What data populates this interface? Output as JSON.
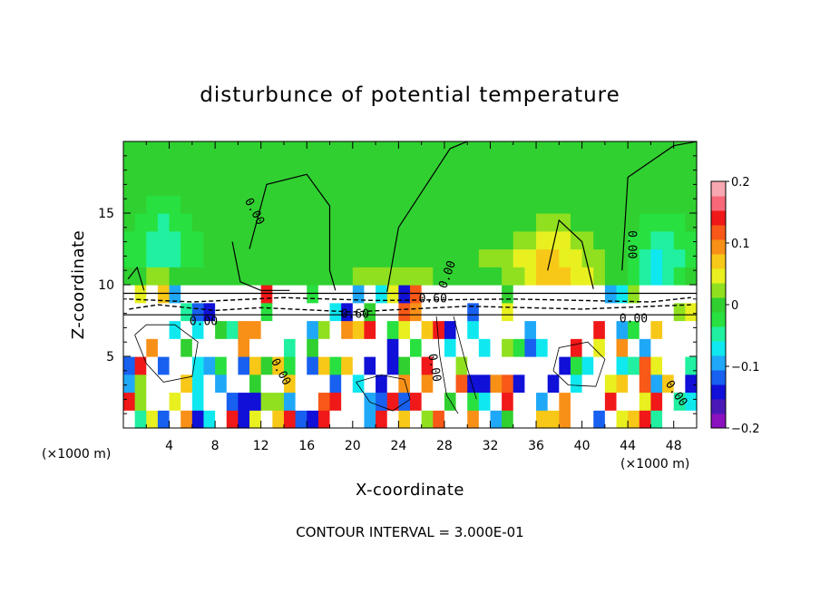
{
  "chart_data": {
    "type": "heatmap",
    "title": "disturbunce of potential temperature",
    "xlabel": "X-coordinate",
    "ylabel": "Z-coordinate",
    "x_unit": "(×1000 m)",
    "y_unit": "(×1000 m)",
    "xlim": [
      0,
      50
    ],
    "ylim": [
      0,
      20
    ],
    "x_ticks": [
      "4",
      "8",
      "12",
      "16",
      "20",
      "24",
      "28",
      "32",
      "36",
      "40",
      "44",
      "48"
    ],
    "y_ticks": [
      "5",
      "10",
      "15"
    ],
    "colorbar": {
      "range": [
        -0.2,
        0.2
      ],
      "tick_labels": [
        "0.2",
        "0.1",
        "0",
        "−0.1",
        "−0.2"
      ],
      "colors": [
        "#8b10c0",
        "#4b18b8",
        "#1010d8",
        "#1860f0",
        "#20a8f8",
        "#10e8f0",
        "#20f0a0",
        "#28e040",
        "#30d030",
        "#90e020",
        "#e8f020",
        "#f8c818",
        "#f89018",
        "#f85818",
        "#f01818",
        "#f86878",
        "#f8a8b0"
      ]
    },
    "contour_labels": [
      "0.00",
      "0.00",
      "0.00",
      "0.00",
      "0.60",
      "0.60",
      "0.00",
      "0.00",
      "0.00",
      "0.00"
    ],
    "cell_values": [
      [
        0.22,
        -0.05,
        0.04,
        -0.12,
        0.22,
        0.1,
        -0.13,
        -0.08,
        0.22,
        0.14,
        -0.15,
        0.05,
        0.22,
        0.08,
        0.15,
        -0.12,
        -0.14,
        0.14,
        0.22,
        0.22,
        0.22,
        -0.1,
        0.13,
        0.22,
        0.06,
        0.22,
        0.03,
        0.12,
        0.22,
        0.22,
        0.1,
        0.22,
        -0.1,
        0.01,
        0.22,
        0.22,
        0.08,
        0.07,
        0.1,
        0.22,
        0.22,
        -0.12,
        0.22,
        0.04,
        0.06,
        0.14,
        -0.05,
        0.22,
        0.22,
        0.22
      ],
      [
        0.13,
        0.02,
        0.22,
        0.22,
        0.05,
        0.22,
        -0.08,
        0.22,
        0.22,
        -0.11,
        -0.13,
        -0.13,
        0.03,
        0.02,
        -0.1,
        0.22,
        0.22,
        0.12,
        0.13,
        0.22,
        0.22,
        -0.1,
        -0.11,
        0.14,
        -0.11,
        0.15,
        0.22,
        0.22,
        0.01,
        0.22,
        -0.02,
        -0.08,
        0.22,
        0.14,
        0.22,
        0.22,
        -0.1,
        0.22,
        0.1,
        0.22,
        0.22,
        0.22,
        0.14,
        0.22,
        0.22,
        0.04,
        0.14,
        0.22,
        -0.04,
        -0.06
      ],
      [
        -0.1,
        0.03,
        0.22,
        0.22,
        0.22,
        0.07,
        -0.06,
        0.22,
        -0.1,
        0.22,
        0.22,
        -0.01,
        0.22,
        0.22,
        0.08,
        0.22,
        0.22,
        0.22,
        -0.11,
        0.22,
        -0.07,
        0.22,
        -0.15,
        0.22,
        0.1,
        0.22,
        0.1,
        0.22,
        0.22,
        0.11,
        -0.15,
        -0.14,
        0.09,
        0.12,
        -0.14,
        0.22,
        0.22,
        -0.13,
        0.22,
        -0.06,
        0.22,
        0.22,
        0.05,
        0.08,
        0.22,
        0.11,
        -0.1,
        0.06,
        0.22,
        -0.14
      ],
      [
        -0.11,
        0.13,
        0.22,
        -0.11,
        0.22,
        0.22,
        -0.07,
        -0.1,
        -0.03,
        0.22,
        -0.11,
        0.06,
        0.01,
        0.07,
        -0.02,
        0.22,
        -0.11,
        0.07,
        -0.03,
        0.08,
        0.22,
        -0.14,
        0.22,
        -0.13,
        -0.01,
        0.22,
        0.13,
        0.22,
        0.22,
        0.02,
        0.22,
        0.22,
        0.22,
        0.22,
        0.22,
        0.22,
        0.22,
        0.22,
        -0.15,
        -0.03,
        -0.08,
        0.22,
        0.22,
        -0.06,
        -0.05,
        0.12,
        0.04,
        0.22,
        0.22,
        -0.05
      ],
      [
        0.22,
        0.22,
        0.1,
        0.22,
        0.22,
        -0.01,
        0.22,
        0.22,
        0.22,
        0.22,
        0.09,
        0.22,
        0.22,
        0.22,
        -0.05,
        0.22,
        -0.01,
        0.22,
        0.22,
        0.22,
        0.22,
        0.22,
        0.22,
        -0.15,
        0.22,
        -0.02,
        0.22,
        0.22,
        -0.08,
        0.22,
        0.22,
        -0.07,
        0.22,
        0.02,
        -0.02,
        -0.12,
        -0.07,
        0.22,
        0.22,
        0.14,
        0.22,
        0.04,
        0.22,
        0.1,
        0.22,
        -0.1,
        0.22,
        0.22,
        0.22,
        0.22
      ],
      [
        0.22,
        0.22,
        0.22,
        0.22,
        -0.06,
        0.22,
        -0.06,
        0.22,
        -0.01,
        -0.04,
        0.1,
        0.1,
        0.22,
        0.22,
        0.22,
        0.22,
        -0.1,
        0.02,
        0.22,
        0.09,
        0.08,
        0.15,
        0.22,
        -0.02,
        0.04,
        0.22,
        0.08,
        0.13,
        -0.13,
        0.22,
        -0.08,
        0.22,
        0.22,
        0.22,
        0.22,
        -0.09,
        0.22,
        0.22,
        0.22,
        0.22,
        0.22,
        0.15,
        0.22,
        -0.1,
        -0.03,
        0.22,
        0.06,
        0.22,
        0.22,
        0.22
      ],
      [
        0.22,
        0.22,
        0.22,
        0.22,
        0.22,
        -0.05,
        -0.12,
        -0.14,
        0.22,
        0.22,
        0.22,
        0.22,
        -0.03,
        0.22,
        0.22,
        0.22,
        0.22,
        0.22,
        -0.08,
        -0.14,
        0.22,
        0.01,
        0.22,
        0.22,
        0.11,
        0.1,
        0.22,
        0.22,
        0.22,
        0.22,
        -0.11,
        0.22,
        0.22,
        0.04,
        0.22,
        0.22,
        0.22,
        0.22,
        0.22,
        0.22,
        0.22,
        0.22,
        0.22,
        0.22,
        0.22,
        0.22,
        0.22,
        0.22,
        0.03,
        0.04
      ],
      [
        0.22,
        0.04,
        0.22,
        0.06,
        -0.09,
        0.22,
        0.22,
        0.22,
        0.22,
        0.22,
        0.22,
        0.22,
        0.13,
        0.22,
        0.22,
        0.22,
        -0.03,
        0.22,
        0.22,
        0.22,
        -0.09,
        0.22,
        -0.08,
        0.05,
        -0.14,
        0.11,
        0.22,
        0.22,
        0.22,
        0.22,
        0.22,
        0.22,
        0.22,
        -0.01,
        0.22,
        0.22,
        0.22,
        0.22,
        0.22,
        0.22,
        0.22,
        0.22,
        -0.1,
        -0.07,
        0.02,
        0.22,
        0.22,
        0.22,
        0.22,
        0.22
      ],
      [
        0.0,
        0.01,
        0.02,
        0.02,
        0.01,
        0.01,
        0.0,
        0.0,
        -0.01,
        -0.01,
        -0.01,
        -0.01,
        0.0,
        0.01,
        0.01,
        0.01,
        0.0,
        0.0,
        0.0,
        0.01,
        0.02,
        0.02,
        0.03,
        0.03,
        0.03,
        0.03,
        0.02,
        0.01,
        0.0,
        -0.01,
        -0.01,
        0.0,
        0.01,
        0.02,
        0.03,
        0.05,
        0.06,
        0.07,
        0.06,
        0.05,
        0.04,
        0.02,
        0.01,
        -0.01,
        -0.03,
        -0.05,
        -0.06,
        -0.05,
        -0.02,
        0.0
      ],
      [
        -0.02,
        -0.03,
        -0.04,
        -0.04,
        -0.04,
        -0.03,
        -0.02,
        -0.01,
        0.0,
        0.01,
        0.01,
        0.0,
        0.0,
        0.0,
        0.0,
        0.01,
        0.01,
        0.01,
        0.01,
        0.01,
        0.01,
        0.01,
        0.01,
        0.01,
        0.01,
        0.01,
        0.01,
        0.0,
        0.0,
        0.0,
        0.01,
        0.02,
        0.02,
        0.03,
        0.04,
        0.05,
        0.06,
        0.06,
        0.05,
        0.04,
        0.03,
        0.02,
        0.01,
        -0.01,
        -0.03,
        -0.05,
        -0.06,
        -0.05,
        -0.04,
        -0.02
      ],
      [
        -0.02,
        -0.03,
        -0.04,
        -0.05,
        -0.04,
        -0.03,
        -0.02,
        -0.01,
        -0.01,
        0.0,
        0.0,
        0.01,
        0.01,
        0.01,
        0.01,
        0.01,
        0.01,
        0.01,
        0.01,
        0.01,
        0.01,
        0.01,
        0.01,
        0.01,
        0.01,
        0.01,
        0.01,
        0.01,
        0.01,
        0.0,
        0.0,
        0.0,
        0.01,
        0.01,
        0.02,
        0.03,
        0.04,
        0.04,
        0.04,
        0.03,
        0.02,
        0.01,
        0.0,
        -0.01,
        -0.02,
        -0.03,
        -0.04,
        -0.04,
        -0.03,
        -0.02
      ],
      [
        -0.01,
        -0.02,
        -0.03,
        -0.04,
        -0.03,
        -0.02,
        -0.01,
        0.0,
        0.0,
        0.01,
        0.01,
        0.01,
        0.01,
        0.01,
        0.01,
        0.01,
        0.01,
        0.01,
        0.01,
        0.01,
        0.01,
        0.01,
        0.01,
        0.01,
        0.01,
        0.01,
        0.01,
        0.01,
        0.01,
        0.01,
        0.01,
        0.0,
        0.0,
        0.0,
        0.01,
        0.01,
        0.02,
        0.02,
        0.02,
        0.01,
        0.01,
        0.0,
        0.0,
        -0.01,
        -0.01,
        -0.02,
        -0.03,
        -0.03,
        -0.02,
        -0.01
      ],
      [
        0.0,
        -0.01,
        -0.02,
        -0.02,
        -0.02,
        -0.01,
        0.0,
        0.0,
        0.01,
        0.01,
        0.01,
        0.01,
        0.01,
        0.01,
        0.01,
        0.01,
        0.01,
        0.01,
        0.01,
        0.01,
        0.01,
        0.01,
        0.01,
        0.01,
        0.01,
        0.01,
        0.01,
        0.01,
        0.01,
        0.01,
        0.01,
        0.01,
        0.01,
        0.0,
        0.0,
        0.0,
        0.0,
        0.01,
        0.01,
        0.0,
        0.0,
        0.0,
        0.0,
        0.0,
        0.0,
        -0.01,
        -0.01,
        -0.01,
        -0.01,
        0.0
      ],
      [
        0.0,
        0.0,
        -0.01,
        -0.01,
        -0.01,
        0.0,
        0.0,
        0.0,
        0.01,
        0.01,
        0.01,
        0.01,
        0.01,
        0.01,
        0.01,
        0.01,
        0.01,
        0.01,
        0.01,
        0.01,
        0.01,
        0.01,
        0.01,
        0.01,
        0.01,
        0.01,
        0.01,
        0.01,
        0.01,
        0.01,
        0.01,
        0.01,
        0.01,
        0.01,
        0.01,
        0.0,
        0.0,
        0.0,
        0.0,
        0.0,
        0.0,
        0.0,
        0.0,
        0.0,
        0.0,
        0.0,
        0.0,
        0.0,
        0.0,
        0.0
      ],
      [
        0.01,
        0.01,
        0.01,
        0.01,
        0.01,
        0.01,
        0.01,
        0.01,
        0.01,
        0.01,
        0.01,
        0.01,
        0.01,
        0.01,
        0.01,
        0.01,
        0.01,
        0.01,
        0.01,
        0.01,
        0.01,
        0.01,
        0.01,
        0.01,
        0.01,
        0.01,
        0.01,
        0.01,
        0.01,
        0.01,
        0.01,
        0.01,
        0.01,
        0.01,
        0.01,
        0.01,
        0.01,
        0.01,
        0.01,
        0.01,
        0.01,
        0.01,
        0.01,
        0.01,
        0.01,
        0.01,
        0.01,
        0.01,
        0.01,
        0.01
      ],
      [
        0.01,
        0.01,
        0.01,
        0.01,
        0.01,
        0.01,
        0.01,
        0.01,
        0.01,
        0.01,
        0.01,
        0.01,
        0.01,
        0.01,
        0.01,
        0.01,
        0.01,
        0.01,
        0.01,
        0.01,
        0.01,
        0.01,
        0.01,
        0.01,
        0.01,
        0.01,
        0.01,
        0.01,
        0.01,
        0.01,
        0.01,
        0.01,
        0.01,
        0.01,
        0.01,
        0.01,
        0.01,
        0.01,
        0.01,
        0.01,
        0.01,
        0.01,
        0.01,
        0.01,
        0.01,
        0.01,
        0.01,
        0.01,
        0.01,
        0.01
      ]
    ]
  },
  "footer": {
    "contour_interval": "CONTOUR INTERVAL = 3.000E-01"
  }
}
